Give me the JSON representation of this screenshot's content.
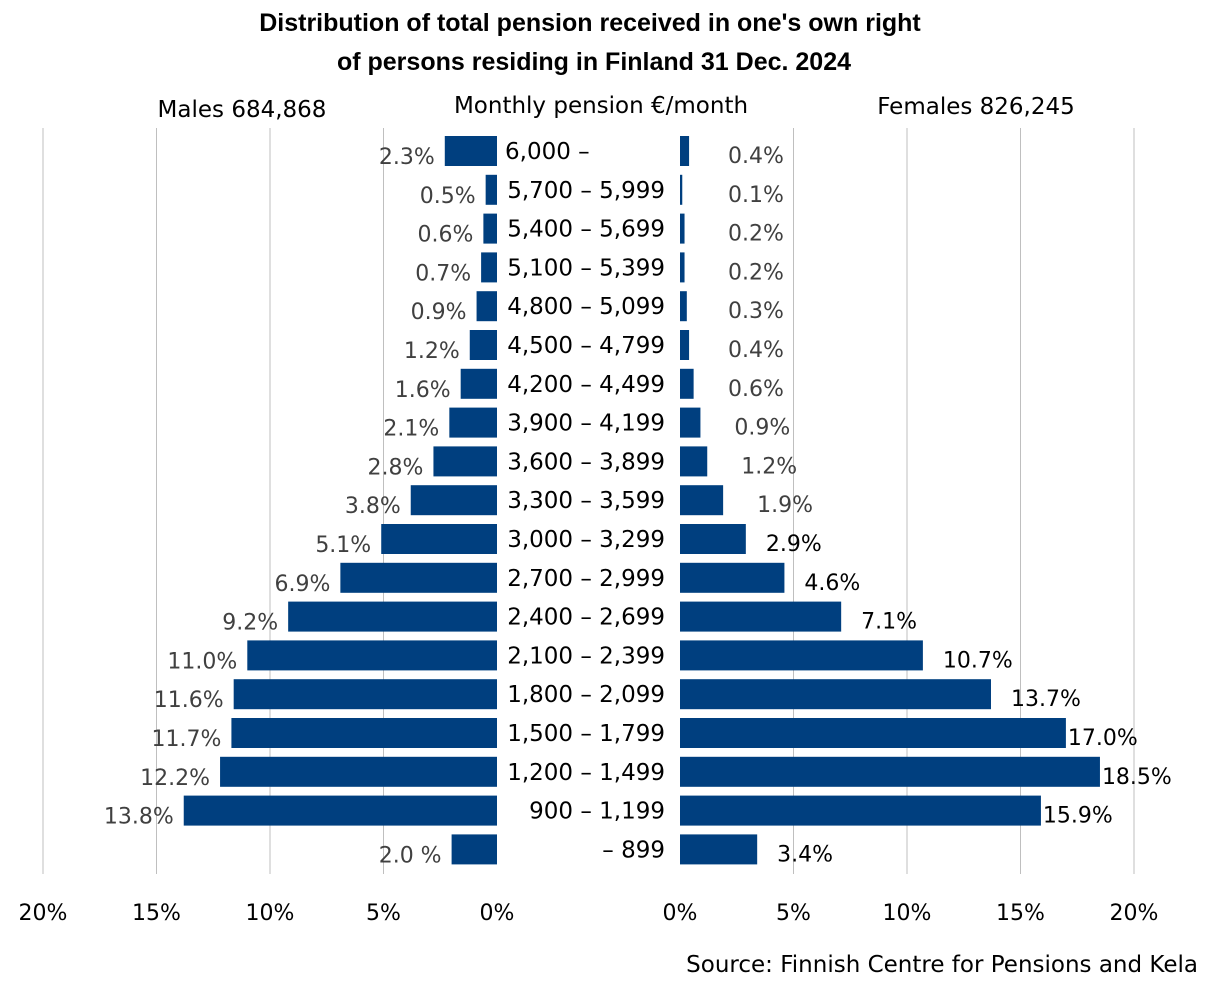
{
  "chart_data": {
    "type": "bar",
    "orientation": "horizontal",
    "layout": "back-to-back population pyramid",
    "title_lines": [
      "Distribution of total pension received in one's own right",
      "of persons residing in Finland 31 Dec. 2024"
    ],
    "category_header": "Monthly pension €/month",
    "source": "Source: Finnish Centre for Pensions and Kela",
    "categories": [
      "6,000 –",
      "5,700 – 5,999",
      "5,400 – 5,699",
      "5,100 – 5,399",
      "4,800 – 5,099",
      "4,500 – 4,799",
      "4,200 – 4,499",
      "3,900 – 4,199",
      "3,600 – 3,899",
      "3,300 – 3,599",
      "3,000 – 3,299",
      "2,700 – 2,999",
      "2,400 – 2,699",
      "2,100 – 2,399",
      "1,800 – 2,099",
      "1,500 – 1,799",
      "1,200 – 1,499",
      "900 – 1,199",
      "– 899"
    ],
    "series": [
      {
        "name": "Males 684,868",
        "side": "left",
        "values": [
          2.3,
          0.5,
          0.6,
          0.7,
          0.9,
          1.2,
          1.6,
          2.1,
          2.8,
          3.8,
          5.1,
          6.9,
          9.2,
          11.0,
          11.6,
          11.7,
          12.2,
          13.8,
          2.0
        ],
        "labels": [
          "2.3%",
          "0.5%",
          "0.6%",
          "0.7%",
          "0.9%",
          "1.2%",
          "1.6%",
          "2.1%",
          "2.8%",
          "3.8%",
          "5.1%",
          "6.9%",
          "9.2%",
          "11.0%",
          "11.6%",
          "11.7%",
          "12.2%",
          "13.8%",
          "2.0 %"
        ]
      },
      {
        "name": "Females 826,245",
        "side": "right",
        "values": [
          0.4,
          0.1,
          0.2,
          0.2,
          0.3,
          0.4,
          0.6,
          0.9,
          1.2,
          1.9,
          2.9,
          4.6,
          7.1,
          10.7,
          13.7,
          17.0,
          18.5,
          15.9,
          3.4
        ],
        "labels": [
          "0.4%",
          "0.1%",
          "0.2%",
          "0.2%",
          "0.3%",
          "0.4%",
          "0.6%",
          "0.9%",
          "1.2%",
          "1.9%",
          "2.9%",
          "4.6%",
          "7.1%",
          "10.7%",
          "13.7%",
          "17.0%",
          "18.5%",
          "15.9%",
          "3.4%"
        ]
      }
    ],
    "xlim": [
      0,
      20
    ],
    "x_ticks": [
      20,
      15,
      10,
      5,
      0
    ],
    "left_tick_labels": [
      "20%",
      "15%",
      "10%",
      "5%",
      "0%"
    ],
    "right_tick_labels": [
      "0%",
      "5%",
      "10%",
      "15%",
      "20%"
    ],
    "grid": true,
    "bar_color": "#003f7f",
    "grid_color": "#bfbfbf",
    "label_color_muted": "#404040",
    "label_color_dark": "#000000"
  }
}
